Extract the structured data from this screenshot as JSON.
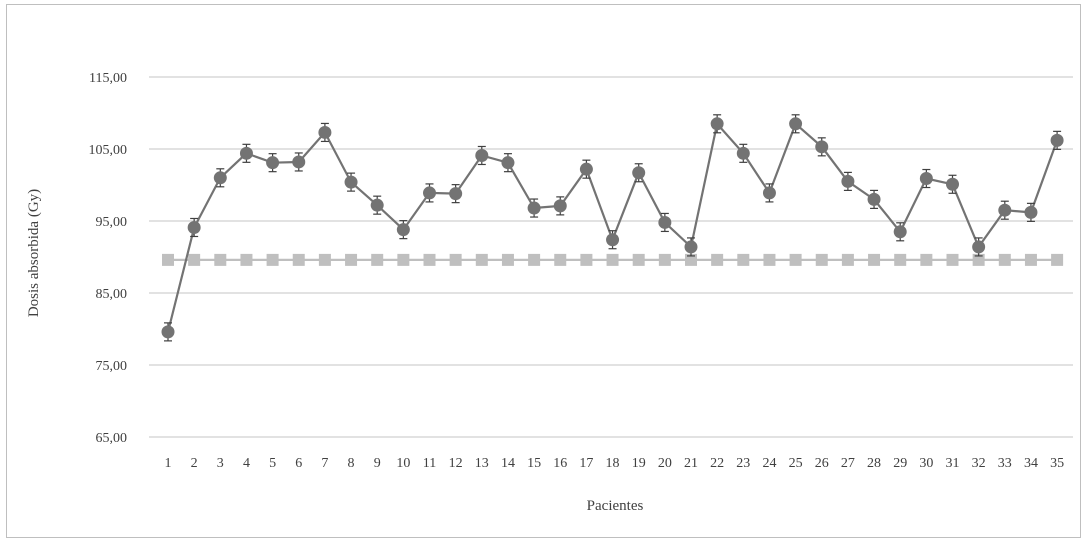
{
  "chart_data": {
    "type": "line",
    "xlabel": "Pacientes",
    "ylabel": "Dosis absorbida (Gy)",
    "ylim": [
      65,
      115
    ],
    "y_ticks": [
      65,
      75,
      85,
      95,
      105,
      115
    ],
    "y_tick_labels": [
      "65,00",
      "75,00",
      "85,00",
      "95,00",
      "105,00",
      "115,00"
    ],
    "grid": "horizontal",
    "categories": [
      "1",
      "2",
      "3",
      "4",
      "5",
      "6",
      "7",
      "8",
      "9",
      "10",
      "11",
      "12",
      "13",
      "14",
      "15",
      "16",
      "17",
      "18",
      "19",
      "20",
      "21",
      "22",
      "23",
      "24",
      "25",
      "26",
      "27",
      "28",
      "29",
      "30",
      "31",
      "32",
      "33",
      "34",
      "35"
    ],
    "series": [
      {
        "color": "#737373",
        "marker": "circle",
        "error_bars": true,
        "values": [
          79.6,
          94.1,
          101.0,
          104.4,
          103.1,
          103.2,
          107.3,
          100.4,
          97.2,
          93.8,
          98.9,
          98.8,
          104.1,
          103.1,
          96.8,
          97.1,
          102.2,
          92.4,
          101.7,
          94.8,
          91.4,
          108.5,
          104.4,
          98.9,
          108.5,
          105.3,
          100.5,
          98.0,
          93.5,
          100.9,
          100.1,
          91.4,
          96.5,
          96.2,
          106.2
        ]
      },
      {
        "color": "#bfbfbf",
        "marker": "square",
        "error_bars": false,
        "values": [
          89.6,
          89.6,
          89.6,
          89.6,
          89.6,
          89.6,
          89.6,
          89.6,
          89.6,
          89.6,
          89.6,
          89.6,
          89.6,
          89.6,
          89.6,
          89.6,
          89.6,
          89.6,
          89.6,
          89.6,
          89.6,
          89.6,
          89.6,
          89.6,
          89.6,
          89.6,
          89.6,
          89.6,
          89.6,
          89.6,
          89.6,
          89.6,
          89.6,
          89.6,
          89.6
        ]
      }
    ]
  }
}
